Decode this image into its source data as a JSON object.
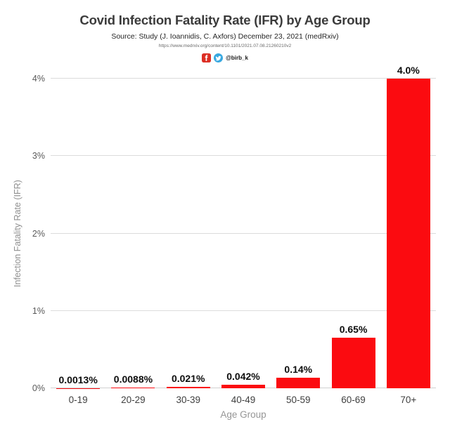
{
  "header": {
    "title": "Covid Infection Fatality Rate (IFR) by Age Group",
    "subtitle": "Source: Study (J. Ioannidis, C. Axfors) December 23, 2021 (medRxiv)",
    "source_url": "https://www.medrxiv.org/content/10.1101/2021.07.08.21260210v2",
    "social_handle": "@birb_k",
    "icons": [
      "facebook-icon",
      "twitter-icon"
    ]
  },
  "colors": {
    "bar_red": "#fb0b10",
    "facebook_red": "#dc2e24",
    "twitter_blue": "#38a8e0",
    "gridline": "#dcdcdc",
    "title_text": "#3b3b3b",
    "axis_text": "#595959",
    "axis_title_text": "#8f8f8f"
  },
  "chart_data": {
    "type": "bar",
    "title": "Covid Infection Fatality Rate (IFR) by Age Group",
    "categories": [
      "0-19",
      "20-29",
      "30-39",
      "40-49",
      "50-59",
      "60-69",
      "70+"
    ],
    "values": [
      0.0013,
      0.0088,
      0.021,
      0.042,
      0.14,
      0.65,
      4.0
    ],
    "value_labels": [
      "0.0013%",
      "0.0088%",
      "0.021%",
      "0.042%",
      "0.14%",
      "0.65%",
      "4.0%"
    ],
    "xlabel": "Age Group",
    "ylabel": "Infection Fatality Rate (IFR)",
    "ylim": [
      0,
      4
    ],
    "yticks": [
      0,
      1,
      2,
      3,
      4
    ],
    "ytick_labels": [
      "0%",
      "1%",
      "2%",
      "3%",
      "4%"
    ],
    "bar_color": "#fb0b10",
    "grid": true,
    "legend": false
  }
}
